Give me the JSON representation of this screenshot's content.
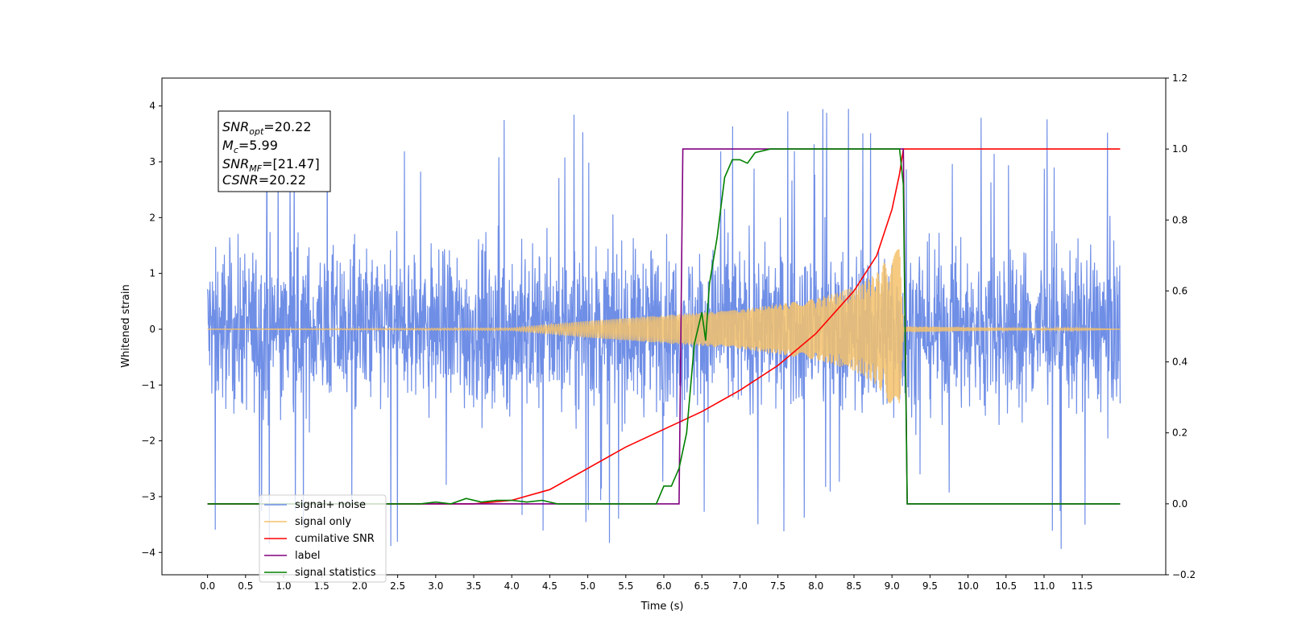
{
  "chart_data": {
    "type": "line",
    "xlabel": "Time (s)",
    "ylabel": "Whitened strain",
    "xlim": [
      -0.6,
      12.6
    ],
    "ylim": [
      -4.4,
      4.5
    ],
    "y2lim": [
      -0.2,
      1.2
    ],
    "x_ticks": [
      "0.0",
      "0.5",
      "1.0",
      "1.5",
      "2.0",
      "2.5",
      "3.0",
      "3.5",
      "4.0",
      "4.5",
      "5.0",
      "5.5",
      "6.0",
      "6.5",
      "7.0",
      "7.5",
      "8.0",
      "8.5",
      "9.0",
      "9.5",
      "10.0",
      "10.5",
      "11.0",
      "11.5"
    ],
    "y_ticks": [
      "4",
      "3",
      "2",
      "1",
      "0",
      "−1",
      "−2",
      "−3",
      "−4"
    ],
    "y2_ticks": [
      "1.2",
      "1.0",
      "0.8",
      "0.6",
      "0.4",
      "0.2",
      "0.0",
      "−0.2"
    ],
    "grid": false,
    "legend_position": "lower-left",
    "annotation": {
      "snr_opt": {
        "base": "SNR",
        "sub": "opt",
        "value": "=20.22"
      },
      "mc": {
        "base": "M",
        "sub": "c",
        "value": "=5.99"
      },
      "snr_mf": {
        "base": "SNR",
        "sub": "MF",
        "value": "=[21.47]"
      },
      "csnr": {
        "base": "CSNR",
        "value": "=20.22"
      }
    },
    "series": [
      {
        "name": "signal+ noise",
        "color": "#6f8ee6",
        "axis": "left",
        "kind": "noise",
        "x_range": [
          0.0,
          12.0
        ],
        "noise_amplitude": 1.0,
        "outlier_range": [
          -4.0,
          4.1
        ]
      },
      {
        "name": "signal only",
        "color": "#f5c26b",
        "axis": "left",
        "kind": "chirp",
        "x_range": [
          0.0,
          12.0
        ],
        "envelope_x": [
          0.0,
          4.0,
          5.0,
          6.0,
          7.0,
          8.0,
          8.5,
          8.8,
          9.0,
          9.1,
          9.15,
          12.0
        ],
        "envelope_y": [
          0.0,
          0.02,
          0.15,
          0.25,
          0.35,
          0.55,
          0.75,
          1.0,
          1.4,
          1.6,
          0.05,
          0.0
        ]
      },
      {
        "name": "cumilative SNR",
        "color": "#ff0000",
        "axis": "right",
        "x": [
          0.0,
          3.5,
          4.0,
          4.5,
          5.0,
          5.5,
          6.0,
          6.5,
          7.0,
          7.5,
          8.0,
          8.5,
          8.8,
          9.0,
          9.1,
          9.15,
          12.0
        ],
        "y": [
          0.0,
          0.0,
          0.01,
          0.04,
          0.1,
          0.16,
          0.21,
          0.26,
          0.32,
          0.39,
          0.48,
          0.6,
          0.7,
          0.83,
          0.93,
          1.0,
          1.0
        ]
      },
      {
        "name": "label",
        "color": "#800080",
        "axis": "right",
        "x": [
          0.0,
          6.2,
          6.25,
          9.15,
          9.2,
          12.0
        ],
        "y": [
          0.0,
          0.0,
          1.0,
          1.0,
          0.0,
          0.0
        ]
      },
      {
        "name": "signal statistics",
        "color": "#008000",
        "axis": "right",
        "x": [
          0.0,
          2.8,
          3.0,
          3.2,
          3.4,
          3.6,
          3.8,
          4.0,
          4.2,
          4.4,
          4.6,
          5.0,
          5.9,
          6.0,
          6.1,
          6.2,
          6.3,
          6.4,
          6.5,
          6.55,
          6.6,
          6.7,
          6.8,
          6.9,
          7.0,
          7.1,
          7.2,
          7.4,
          7.6,
          8.0,
          9.1,
          9.15,
          9.2,
          12.0
        ],
        "y": [
          0.0,
          0.0,
          0.005,
          0.0,
          0.015,
          0.005,
          0.01,
          0.01,
          0.005,
          0.01,
          0.0,
          0.0,
          0.0,
          0.05,
          0.05,
          0.1,
          0.2,
          0.45,
          0.54,
          0.46,
          0.62,
          0.75,
          0.92,
          0.97,
          0.97,
          0.96,
          0.99,
          1.0,
          1.0,
          1.0,
          1.0,
          0.9,
          0.0,
          0.0
        ]
      }
    ]
  }
}
